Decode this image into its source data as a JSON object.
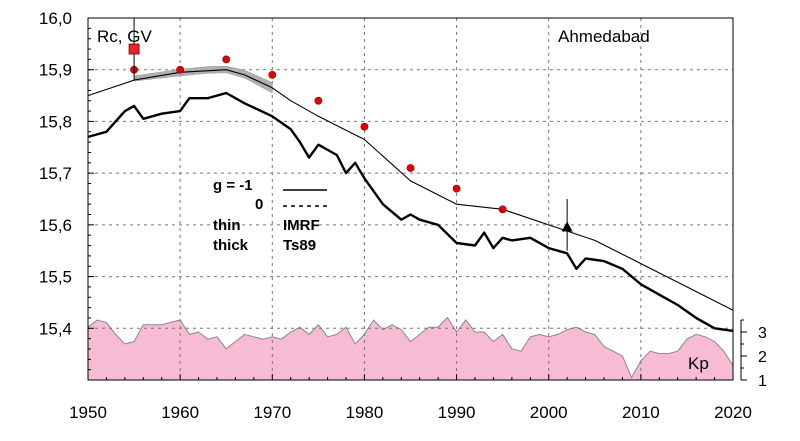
{
  "chart_data": {
    "type": "line",
    "station": "Ahmedabad",
    "ylabel": "Rc, GV",
    "xlim": [
      1950,
      2020
    ],
    "ylim": [
      15.3,
      16.0
    ],
    "x_ticks": [
      "1950",
      "1960",
      "1970",
      "1980",
      "1990",
      "2000",
      "2010",
      "2020"
    ],
    "y_ticks": [
      "15,4",
      "15,5",
      "15,6",
      "15,7",
      "15,8",
      "15,9",
      "16,0"
    ],
    "kp_ticks": [
      "1",
      "2",
      "3"
    ],
    "kp_label": "Kp",
    "colors": {
      "kp_fill": "#f7bcd3",
      "kp_line": "#888888",
      "dots": "#dd0000",
      "square": "#ee2222",
      "band": "#b0b0b0",
      "lines": "#000000"
    },
    "legend": {
      "g_line1": "g  = -1",
      "g_line2": "0",
      "thin": "thin",
      "thick": "thick",
      "imrf": "IMRF",
      "ts89": "Ts89"
    },
    "series": [
      {
        "style": "thin",
        "x": [
          1950,
          1955,
          1960,
          1965,
          1967,
          1970,
          1972,
          1975,
          1980,
          1985,
          1990,
          1995,
          2000,
          2005,
          2010,
          2015,
          2020
        ],
        "y": [
          15.85,
          15.88,
          15.895,
          15.9,
          15.89,
          15.865,
          15.84,
          15.81,
          15.765,
          15.685,
          15.64,
          15.63,
          15.6,
          15.57,
          15.525,
          15.48,
          15.435
        ]
      },
      {
        "style": "thick",
        "x": [
          1950,
          1952,
          1954,
          1955,
          1956,
          1958,
          1960,
          1961,
          1963,
          1965,
          1967,
          1970,
          1972,
          1973,
          1974,
          1975,
          1977,
          1978,
          1979,
          1980,
          1982,
          1984,
          1985,
          1986,
          1988,
          1990,
          1992,
          1993,
          1994,
          1995,
          1996,
          1998,
          2000,
          2002,
          2003,
          2004,
          2006,
          2008,
          2010,
          2012,
          2014,
          2016,
          2018,
          2020
        ],
        "y": [
          15.77,
          15.78,
          15.82,
          15.83,
          15.805,
          15.815,
          15.82,
          15.845,
          15.845,
          15.855,
          15.835,
          15.81,
          15.785,
          15.76,
          15.73,
          15.755,
          15.735,
          15.7,
          15.72,
          15.69,
          15.64,
          15.61,
          15.62,
          15.61,
          15.6,
          15.565,
          15.56,
          15.585,
          15.555,
          15.575,
          15.57,
          15.575,
          15.555,
          15.545,
          15.515,
          15.535,
          15.53,
          15.515,
          15.485,
          15.465,
          15.445,
          15.42,
          15.4,
          15.395
        ]
      }
    ],
    "band": {
      "x": [
        1955,
        1960,
        1963,
        1965,
        1967,
        1970
      ],
      "y_low": [
        15.878,
        15.888,
        15.893,
        15.894,
        15.884,
        15.855
      ],
      "y_high": [
        15.888,
        15.901,
        15.906,
        15.907,
        15.899,
        15.875
      ]
    },
    "dots": {
      "x": [
        1955,
        1960,
        1965,
        1970,
        1975,
        1980,
        1985,
        1990,
        1995
      ],
      "y": [
        15.9,
        15.9,
        15.92,
        15.89,
        15.84,
        15.79,
        15.71,
        15.67,
        15.63
      ]
    },
    "square": {
      "x": 1955,
      "y": 15.94,
      "err": [
        15.88,
        16.0
      ]
    },
    "triangle": {
      "x": 2002,
      "y": 15.595,
      "err": [
        15.55,
        15.65
      ]
    },
    "kp": {
      "x": [
        1950,
        1951,
        1952,
        1953,
        1954,
        1955,
        1956,
        1957,
        1958,
        1959,
        1960,
        1961,
        1962,
        1963,
        1964,
        1965,
        1966,
        1967,
        1968,
        1969,
        1970,
        1971,
        1972,
        1973,
        1974,
        1975,
        1976,
        1977,
        1978,
        1979,
        1980,
        1981,
        1982,
        1983,
        1984,
        1985,
        1986,
        1987,
        1988,
        1989,
        1990,
        1991,
        1992,
        1993,
        1994,
        1995,
        1996,
        1997,
        1998,
        1999,
        2000,
        2001,
        2002,
        2003,
        2004,
        2005,
        2006,
        2007,
        2008,
        2009,
        2010,
        2011,
        2012,
        2013,
        2014,
        2015,
        2016,
        2017,
        2018,
        2019,
        2020
      ],
      "y": [
        3.2,
        3.5,
        3.4,
        2.9,
        2.5,
        2.6,
        3.3,
        3.3,
        3.3,
        3.4,
        3.5,
        2.9,
        3.0,
        2.7,
        2.8,
        2.3,
        2.6,
        2.9,
        2.8,
        2.7,
        2.8,
        2.7,
        3.0,
        3.2,
        2.9,
        3.3,
        2.8,
        2.9,
        3.2,
        2.5,
        2.9,
        3.5,
        3.1,
        3.3,
        3.1,
        2.6,
        2.9,
        3.2,
        3.2,
        3.6,
        3.0,
        3.5,
        3.0,
        3.0,
        2.6,
        2.9,
        2.3,
        2.2,
        2.8,
        2.9,
        2.8,
        2.9,
        3.1,
        3.2,
        3.0,
        2.9,
        2.4,
        2.2,
        2.0,
        1.1,
        1.8,
        2.2,
        2.1,
        2.1,
        2.2,
        2.7,
        2.9,
        2.8,
        2.6,
        2.2,
        1.6
      ]
    }
  }
}
